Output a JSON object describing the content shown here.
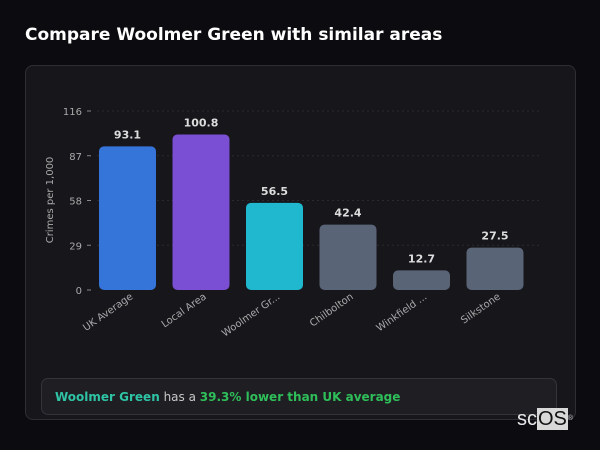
{
  "title": "Compare Woolmer Green with similar areas",
  "chart_data": {
    "type": "bar",
    "categories": [
      "UK Average",
      "Local Area",
      "Woolmer Gr...",
      "Chilbolton",
      "Winkfield ...",
      "Silkstone"
    ],
    "values": [
      93.1,
      100.8,
      56.5,
      42.4,
      12.7,
      27.5
    ],
    "value_labels": [
      "93.1",
      "100.8",
      "56.5",
      "42.4",
      "12.7",
      "27.5"
    ],
    "colors": [
      "#3574d9",
      "#7b4fd3",
      "#1fb8cf",
      "#5a6477",
      "#5a6477",
      "#5a6477"
    ],
    "ylabel": "Crimes per 1,000",
    "xlabel": "",
    "yticks": [
      0,
      29,
      58,
      87,
      116
    ],
    "ylim": [
      0,
      116
    ],
    "grid": true
  },
  "insight": {
    "area": "Woolmer Green",
    "middle": "has a",
    "stat": "39.3% lower than UK average"
  },
  "watermark": {
    "a": "sc",
    "b": "OS",
    "mark": "®"
  }
}
